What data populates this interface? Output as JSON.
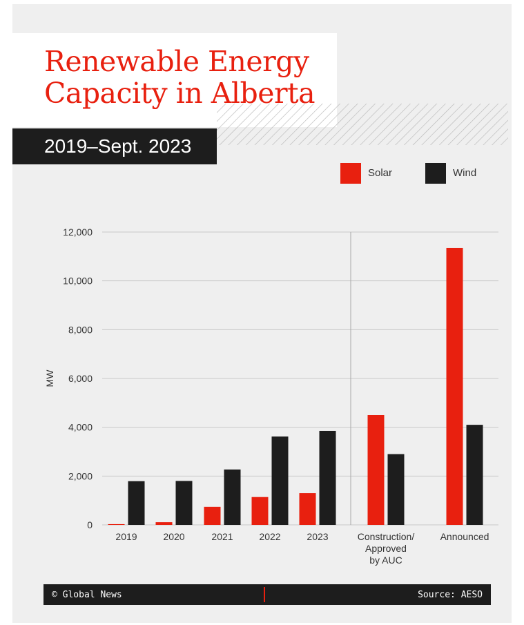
{
  "header": {
    "title_line1": "Renewable Energy",
    "title_line2": "Capacity in Alberta",
    "subtitle": "2019–Sept. 2023"
  },
  "footer": {
    "copyright": "© Global News",
    "source": "Source: AESO"
  },
  "colors": {
    "solar": "#e8200f",
    "wind": "#1d1d1d",
    "accent": "#e8200f",
    "background": "#efefef"
  },
  "chart_data": {
    "type": "bar",
    "ylabel": "MW",
    "ylim": [
      0,
      12000
    ],
    "yticks": [
      0,
      2000,
      4000,
      6000,
      8000,
      10000,
      12000
    ],
    "ytick_labels": [
      "0",
      "2,000",
      "4,000",
      "6,000",
      "8,000",
      "10,000",
      "12,000"
    ],
    "grid": true,
    "legend_position": "top-right",
    "categories": [
      [
        "2019"
      ],
      [
        "2020"
      ],
      [
        "2021"
      ],
      [
        "2022"
      ],
      [
        "2023"
      ],
      [
        "Construction/",
        "Approved",
        "by AUC"
      ],
      [
        "Announced"
      ]
    ],
    "separator_after_category_index": 4,
    "series": [
      {
        "name": "Solar",
        "values": [
          30,
          110,
          740,
          1140,
          1300,
          4500,
          11350
        ]
      },
      {
        "name": "Wind",
        "values": [
          1790,
          1800,
          2270,
          3620,
          3850,
          2900,
          4100
        ]
      }
    ]
  }
}
